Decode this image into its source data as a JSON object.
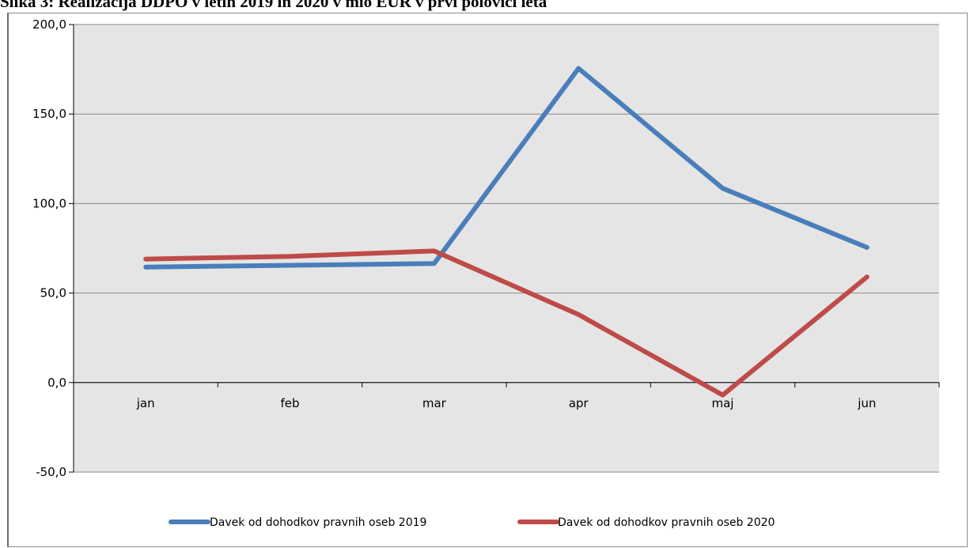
{
  "caption": "Slika 3: Realizacija DDPO v letih 2019 in 2020 v mio EUR v prvi polovici leta",
  "colors": {
    "plot_bg": "#e5e5e5",
    "grid": "#8a8a8a",
    "series_2019": "#4a7ebb",
    "series_2020": "#be4b48"
  },
  "chart_data": {
    "type": "line",
    "title": "",
    "xlabel": "",
    "ylabel": "",
    "categories": [
      "jan",
      "feb",
      "mar",
      "apr",
      "maj",
      "jun"
    ],
    "ylim": [
      -50,
      200
    ],
    "ytick_labels": [
      "200,0",
      "150,0",
      "100,0",
      "50,0",
      "0,0",
      "-50,0"
    ],
    "ytick_values": [
      200,
      150,
      100,
      50,
      0,
      -50
    ],
    "grid": true,
    "legend_position": "bottom",
    "series": [
      {
        "name": "Davek od dohodkov pravnih oseb 2019",
        "values": [
          64.5,
          65.5,
          66.5,
          175.5,
          108.5,
          75.5
        ]
      },
      {
        "name": "Davek od dohodkov pravnih oseb 2020",
        "values": [
          69,
          70.5,
          73.5,
          38,
          -7,
          59
        ]
      }
    ]
  }
}
